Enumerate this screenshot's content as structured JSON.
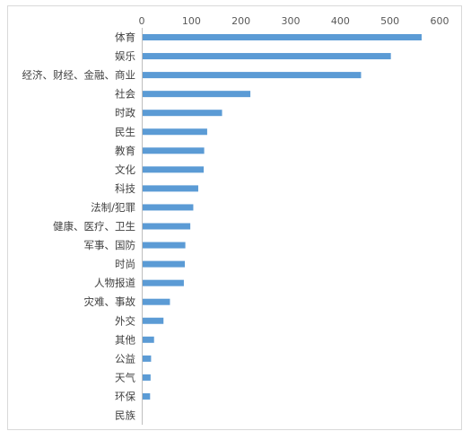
{
  "chart_data": {
    "type": "bar",
    "orientation": "horizontal",
    "title": "",
    "xlabel": "",
    "ylabel": "",
    "xlim": [
      0,
      600
    ],
    "x_ticks": [
      "0",
      "100",
      "200",
      "300",
      "400",
      "500",
      "600"
    ],
    "x_axis_position": "top",
    "grid": false,
    "legend": "none",
    "bar_color": "#5b9bd5",
    "categories": [
      "体育",
      "娱乐",
      "经济、财经、金融、商业",
      "社会",
      "时政",
      "民生",
      "教育",
      "文化",
      "科技",
      "法制/犯罪",
      "健康、医疗、卫生",
      "军事、国防",
      "时尚",
      "人物报道",
      "灾难、事故",
      "外交",
      "其他",
      "公益",
      "天气",
      "环保",
      "民族"
    ],
    "values": [
      562,
      500,
      440,
      217,
      160,
      130,
      124,
      123,
      112,
      102,
      96,
      86,
      85,
      83,
      55,
      42,
      23,
      17,
      16,
      15,
      0
    ]
  }
}
